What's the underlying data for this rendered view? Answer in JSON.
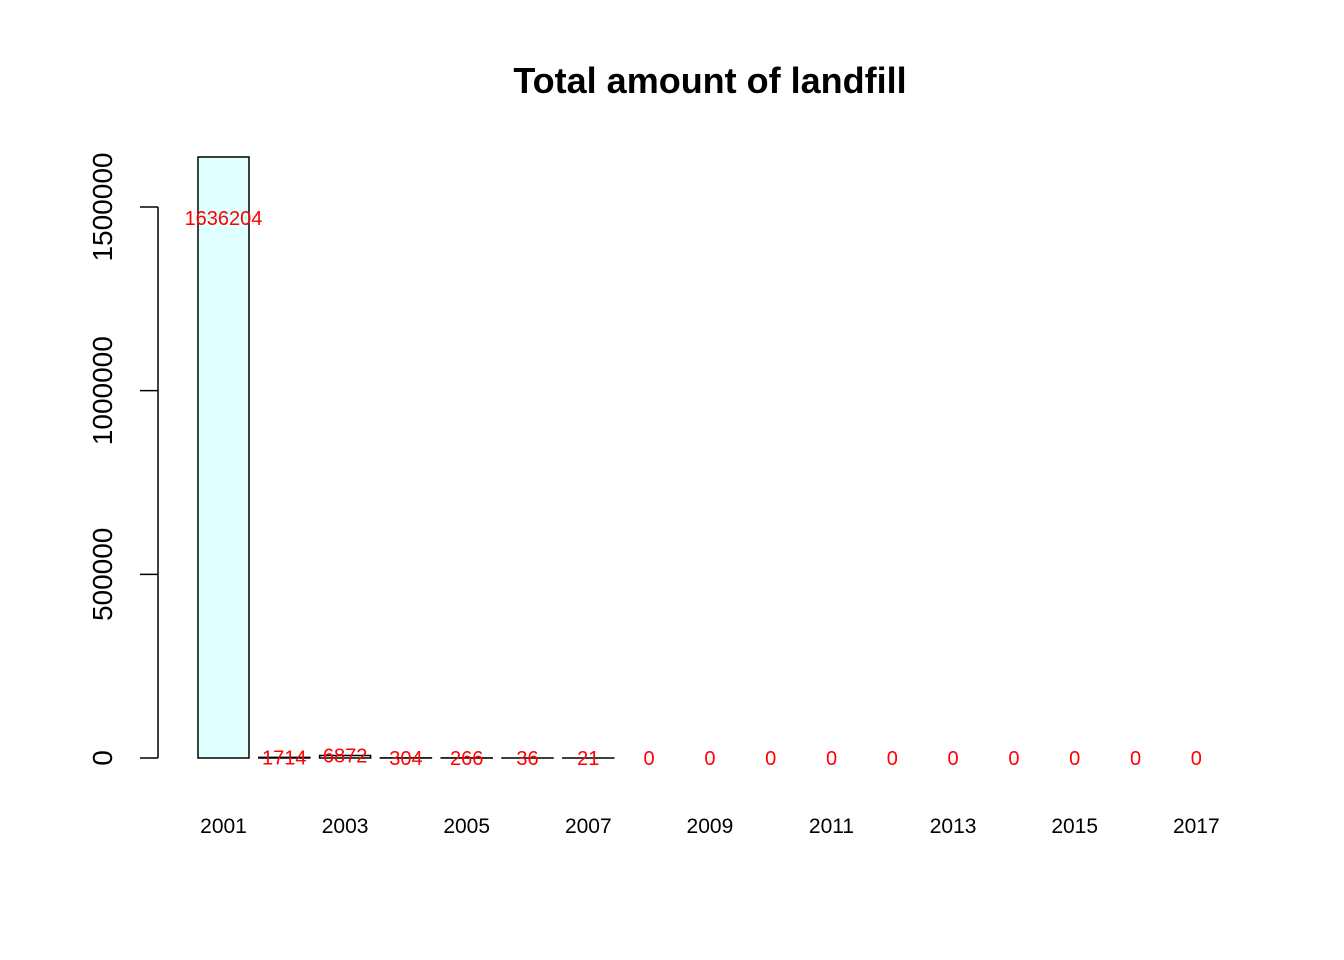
{
  "chart_data": {
    "type": "bar",
    "title": "Total amount of landfill",
    "xlabel": "",
    "ylabel": "",
    "categories": [
      "2001",
      "2002",
      "2003",
      "2004",
      "2005",
      "2006",
      "2007",
      "2008",
      "2009",
      "2010",
      "2011",
      "2012",
      "2013",
      "2014",
      "2015",
      "2016",
      "2017"
    ],
    "values": [
      1636204,
      1714,
      6872,
      304,
      266,
      36,
      21,
      0,
      0,
      0,
      0,
      0,
      0,
      0,
      0,
      0,
      0
    ],
    "data_labels": [
      "1636204",
      "1714",
      "6872",
      "304",
      "266",
      "36",
      "21",
      "0",
      "0",
      "0",
      "0",
      "0",
      "0",
      "0",
      "0",
      "0",
      "0"
    ],
    "x_tick_labels": [
      "2001",
      "2003",
      "2005",
      "2007",
      "2009",
      "2011",
      "2013",
      "2015",
      "2017"
    ],
    "y_ticks": [
      0,
      500000,
      1000000,
      1500000
    ],
    "y_tick_labels": [
      "0",
      "500000",
      "1000000",
      "1500000"
    ],
    "ylim": [
      0,
      1636204
    ],
    "grid": false,
    "legend": "none",
    "colors": {
      "bar_fill": "#e0ffff",
      "bar_stroke": "#000000",
      "label": "#ff0000",
      "axis": "#000000"
    }
  }
}
